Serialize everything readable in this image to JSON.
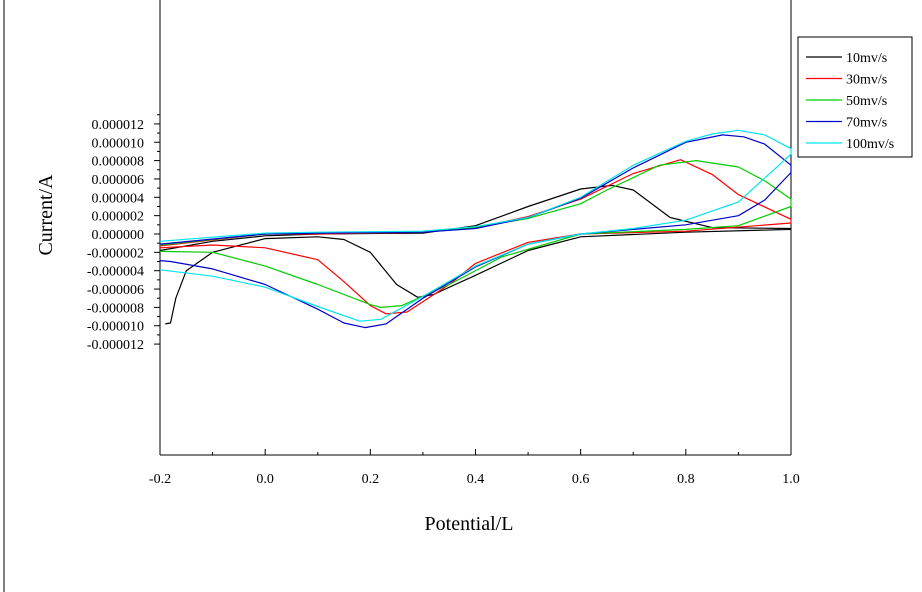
{
  "chart_data": {
    "type": "line",
    "title": "",
    "xlabel": "Potential/L",
    "ylabel": "Current/A",
    "xlim": [
      -0.2,
      1.0
    ],
    "ylim": [
      -1.2e-05,
      1.3e-05
    ],
    "x_ticks": [
      -0.2,
      0.0,
      0.2,
      0.4,
      0.6,
      0.8,
      1.0
    ],
    "x_tick_labels": [
      "-0.2",
      "0.0",
      "0.2",
      "0.4",
      "0.6",
      "0.8",
      "1.0"
    ],
    "y_ticks": [
      -1.2e-05,
      -1e-05,
      -8e-06,
      -6e-06,
      -4e-06,
      -2e-06,
      0,
      2e-06,
      4e-06,
      6e-06,
      8e-06,
      1e-05,
      1.2e-05
    ],
    "y_tick_labels": [
      "-0.000012",
      "-0.000010",
      "-0.000008",
      "-0.000006",
      "-0.000004",
      "-0.000002",
      "0.000000",
      "0.000002",
      "0.000004",
      "0.000006",
      "0.000008",
      "0.000010",
      "0.000012"
    ],
    "grid": false,
    "legend_position": "top-right",
    "series": [
      {
        "name": "10mv/s",
        "color": "#000000",
        "points": [
          [
            -0.19,
            -9.8e-06
          ],
          [
            -0.18,
            -9.7e-06
          ],
          [
            -0.17,
            -7e-06
          ],
          [
            -0.15,
            -4e-06
          ],
          [
            -0.1,
            -2e-06
          ],
          [
            0.0,
            -5e-07
          ],
          [
            0.1,
            -3e-07
          ],
          [
            0.15,
            -6e-07
          ],
          [
            0.2,
            -2e-06
          ],
          [
            0.25,
            -5.5e-06
          ],
          [
            0.29,
            -6.9e-06
          ],
          [
            0.32,
            -6.6e-06
          ],
          [
            0.4,
            -4.5e-06
          ],
          [
            0.5,
            -1.8e-06
          ],
          [
            0.6,
            -3e-07
          ],
          [
            0.8,
            2e-07
          ],
          [
            1.0,
            5e-07
          ],
          [
            1.0,
            6e-07
          ],
          [
            0.85,
            7e-07
          ],
          [
            0.77,
            1.8e-06
          ],
          [
            0.7,
            4.8e-06
          ],
          [
            0.66,
            5.3e-06
          ],
          [
            0.6,
            4.9e-06
          ],
          [
            0.5,
            3e-06
          ],
          [
            0.4,
            9e-07
          ],
          [
            0.3,
            1e-07
          ],
          [
            0.1,
            0.0
          ],
          [
            0.0,
            -2e-07
          ],
          [
            -0.1,
            -8e-07
          ],
          [
            -0.2,
            -1.8e-06
          ]
        ]
      },
      {
        "name": "30mv/s",
        "color": "#ff0000",
        "points": [
          [
            -0.2,
            -1.5e-06
          ],
          [
            -0.1,
            -1.2e-06
          ],
          [
            0.0,
            -1.5e-06
          ],
          [
            0.1,
            -2.8e-06
          ],
          [
            0.15,
            -5.2e-06
          ],
          [
            0.2,
            -7.8e-06
          ],
          [
            0.23,
            -8.7e-06
          ],
          [
            0.27,
            -8.5e-06
          ],
          [
            0.35,
            -5.5e-06
          ],
          [
            0.4,
            -3.2e-06
          ],
          [
            0.5,
            -9e-07
          ],
          [
            0.6,
            0.0
          ],
          [
            0.8,
            3e-07
          ],
          [
            1.0,
            1.2e-06
          ],
          [
            1.0,
            1.6e-06
          ],
          [
            0.9,
            4.3e-06
          ],
          [
            0.85,
            6.5e-06
          ],
          [
            0.79,
            8.1e-06
          ],
          [
            0.7,
            6.6e-06
          ],
          [
            0.6,
            3.8e-06
          ],
          [
            0.5,
            1.9e-06
          ],
          [
            0.4,
            7e-07
          ],
          [
            0.3,
            2e-07
          ],
          [
            0.1,
            0.0
          ],
          [
            0.0,
            0.0
          ],
          [
            -0.2,
            -1.3e-06
          ]
        ]
      },
      {
        "name": "50mv/s",
        "color": "#00cc00",
        "points": [
          [
            -0.2,
            -1.9e-06
          ],
          [
            -0.1,
            -2e-06
          ],
          [
            0.0,
            -3.5e-06
          ],
          [
            0.1,
            -5.5e-06
          ],
          [
            0.2,
            -7.7e-06
          ],
          [
            0.22,
            -8e-06
          ],
          [
            0.26,
            -7.8e-06
          ],
          [
            0.35,
            -5.5e-06
          ],
          [
            0.45,
            -2.5e-06
          ],
          [
            0.6,
            0.0
          ],
          [
            0.8,
            5e-07
          ],
          [
            0.9,
            9e-07
          ],
          [
            1.0,
            3e-06
          ],
          [
            1.0,
            3.8e-06
          ],
          [
            0.95,
            5.8e-06
          ],
          [
            0.9,
            7.3e-06
          ],
          [
            0.82,
            8e-06
          ],
          [
            0.75,
            7.5e-06
          ],
          [
            0.65,
            4.8e-06
          ],
          [
            0.6,
            3.3e-06
          ],
          [
            0.5,
            1.7e-06
          ],
          [
            0.4,
            7e-07
          ],
          [
            0.3,
            2e-07
          ],
          [
            0.1,
            1e-07
          ],
          [
            0.0,
            0.0
          ],
          [
            -0.2,
            -1.2e-06
          ]
        ]
      },
      {
        "name": "70mv/s",
        "color": "#0000cc",
        "points": [
          [
            -0.2,
            -2.9e-06
          ],
          [
            -0.18,
            -3e-06
          ],
          [
            -0.1,
            -3.8e-06
          ],
          [
            0.0,
            -5.5e-06
          ],
          [
            0.1,
            -8.2e-06
          ],
          [
            0.15,
            -9.7e-06
          ],
          [
            0.19,
            -1.02e-05
          ],
          [
            0.23,
            -9.8e-06
          ],
          [
            0.3,
            -7e-06
          ],
          [
            0.4,
            -3.6e-06
          ],
          [
            0.5,
            -1.1e-06
          ],
          [
            0.6,
            0.0
          ],
          [
            0.7,
            5e-07
          ],
          [
            0.8,
            1e-06
          ],
          [
            0.9,
            2e-06
          ],
          [
            0.95,
            3.7e-06
          ],
          [
            1.0,
            6.7e-06
          ],
          [
            1.0,
            7.5e-06
          ],
          [
            0.95,
            9.8e-06
          ],
          [
            0.91,
            1.06e-05
          ],
          [
            0.87,
            1.08e-05
          ],
          [
            0.8,
            1e-05
          ],
          [
            0.7,
            7.2e-06
          ],
          [
            0.6,
            3.9e-06
          ],
          [
            0.5,
            1.8e-06
          ],
          [
            0.4,
            6e-07
          ],
          [
            0.3,
            2e-07
          ],
          [
            0.1,
            1e-07
          ],
          [
            0.0,
            0.0
          ],
          [
            -0.2,
            -1.1e-06
          ]
        ]
      },
      {
        "name": "100mv/s",
        "color": "#00e5ee",
        "points": [
          [
            -0.2,
            -3.9e-06
          ],
          [
            -0.1,
            -4.6e-06
          ],
          [
            0.0,
            -5.8e-06
          ],
          [
            0.1,
            -7.9e-06
          ],
          [
            0.18,
            -9.5e-06
          ],
          [
            0.22,
            -9.3e-06
          ],
          [
            0.3,
            -6.8e-06
          ],
          [
            0.4,
            -3.5e-06
          ],
          [
            0.5,
            -1.1e-06
          ],
          [
            0.6,
            0.0
          ],
          [
            0.7,
            6e-07
          ],
          [
            0.8,
            1.5e-06
          ],
          [
            0.9,
            3.5e-06
          ],
          [
            1.0,
            8.7e-06
          ],
          [
            1.0,
            9.3e-06
          ],
          [
            0.95,
            1.08e-05
          ],
          [
            0.9,
            1.13e-05
          ],
          [
            0.85,
            1.09e-05
          ],
          [
            0.8,
            1.01e-05
          ],
          [
            0.7,
            7.5e-06
          ],
          [
            0.6,
            4e-06
          ],
          [
            0.5,
            1.8e-06
          ],
          [
            0.4,
            8e-07
          ],
          [
            0.3,
            3e-07
          ],
          [
            0.1,
            2e-07
          ],
          [
            0.0,
            1e-07
          ],
          [
            -0.2,
            -8e-07
          ]
        ]
      }
    ]
  }
}
